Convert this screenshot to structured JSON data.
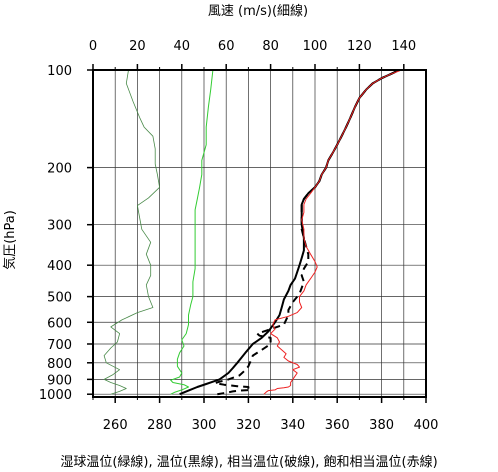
{
  "chart_data": {
    "type": "line",
    "top_axis": {
      "label": "風速 (m/s)(細線)",
      "range": [
        0,
        150
      ],
      "ticks": [
        0,
        20,
        40,
        60,
        80,
        100,
        120,
        140
      ]
    },
    "bottom_axis": {
      "label": "湿球温位(緑線), 温位(黒線), 相当温位(破線), 飽和相当温位(赤線)",
      "range": [
        250,
        400
      ],
      "ticks": [
        260,
        280,
        300,
        320,
        340,
        360,
        380,
        400
      ]
    },
    "y_axis": {
      "label": "気圧(hPa)",
      "scale": "log",
      "range": [
        1020,
        100
      ],
      "ticks": [
        100,
        200,
        300,
        400,
        500,
        600,
        700,
        800,
        900,
        1000
      ]
    },
    "grid": true,
    "series": [
      {
        "name": "風速(細線)",
        "axis": "top",
        "color": "#4a8a4a",
        "style": "thin",
        "points": [
          [
            8,
            1000
          ],
          [
            12,
            980
          ],
          [
            15,
            960
          ],
          [
            12,
            940
          ],
          [
            8,
            920
          ],
          [
            5,
            900
          ],
          [
            9,
            870
          ],
          [
            12,
            840
          ],
          [
            6,
            800
          ],
          [
            5,
            760
          ],
          [
            8,
            720
          ],
          [
            11,
            690
          ],
          [
            12,
            650
          ],
          [
            8,
            620
          ],
          [
            13,
            590
          ],
          [
            20,
            560
          ],
          [
            27,
            540
          ],
          [
            25,
            500
          ],
          [
            24,
            460
          ],
          [
            26,
            430
          ],
          [
            26,
            400
          ],
          [
            24,
            370
          ],
          [
            26,
            340
          ],
          [
            22,
            310
          ],
          [
            21,
            285
          ],
          [
            20,
            262
          ],
          [
            25,
            248
          ],
          [
            30,
            230
          ],
          [
            29,
            210
          ],
          [
            28,
            195
          ],
          [
            28,
            175
          ],
          [
            27,
            160
          ],
          [
            23,
            150
          ],
          [
            21,
            140
          ],
          [
            18,
            125
          ],
          [
            15,
            110
          ],
          [
            16,
            100
          ]
        ]
      },
      {
        "name": "湿球温位(緑線)",
        "axis": "bottom",
        "color": "#33cc33",
        "style": "solid",
        "points": [
          [
            285,
            1000
          ],
          [
            287,
            985
          ],
          [
            290,
            970
          ],
          [
            293,
            950
          ],
          [
            291,
            935
          ],
          [
            286,
            920
          ],
          [
            285,
            905
          ],
          [
            289,
            885
          ],
          [
            290,
            860
          ],
          [
            288,
            820
          ],
          [
            288,
            780
          ],
          [
            289,
            745
          ],
          [
            291,
            710
          ],
          [
            290,
            680
          ],
          [
            292,
            650
          ],
          [
            293,
            610
          ],
          [
            293,
            570
          ],
          [
            294,
            530
          ],
          [
            295,
            500
          ],
          [
            295,
            450
          ],
          [
            296,
            410
          ],
          [
            296,
            370
          ],
          [
            296,
            330
          ],
          [
            296,
            300
          ],
          [
            296,
            270
          ],
          [
            297,
            250
          ],
          [
            298,
            230
          ],
          [
            299,
            210
          ],
          [
            299,
            190
          ],
          [
            301,
            170
          ],
          [
            301,
            150
          ],
          [
            302,
            130
          ],
          [
            303,
            115
          ],
          [
            304,
            100
          ]
        ]
      },
      {
        "name": "温位(黒線)",
        "axis": "bottom",
        "color": "#000000",
        "style": "bold",
        "points": [
          [
            289,
            1000
          ],
          [
            293,
            975
          ],
          [
            297,
            950
          ],
          [
            301,
            930
          ],
          [
            304,
            915
          ],
          [
            307,
            900
          ],
          [
            309,
            880
          ],
          [
            311,
            860
          ],
          [
            313,
            830
          ],
          [
            315,
            800
          ],
          [
            317,
            770
          ],
          [
            319,
            740
          ],
          [
            322,
            700
          ],
          [
            326,
            670
          ],
          [
            329,
            640
          ],
          [
            332,
            600
          ],
          [
            334,
            570
          ],
          [
            335,
            540
          ],
          [
            336,
            510
          ],
          [
            338,
            480
          ],
          [
            339,
            460
          ],
          [
            341,
            440
          ],
          [
            342,
            420
          ],
          [
            343,
            400
          ],
          [
            344,
            380
          ],
          [
            345,
            360
          ],
          [
            345,
            330
          ],
          [
            344,
            300
          ],
          [
            344,
            275
          ],
          [
            344,
            260
          ],
          [
            345,
            250
          ],
          [
            347,
            240
          ],
          [
            350,
            230
          ],
          [
            352,
            220
          ],
          [
            353,
            210
          ],
          [
            355,
            200
          ],
          [
            356,
            190
          ],
          [
            358,
            180
          ],
          [
            360,
            170
          ],
          [
            362,
            160
          ],
          [
            364,
            150
          ],
          [
            366,
            140
          ],
          [
            368,
            130
          ],
          [
            370,
            122
          ],
          [
            373,
            115
          ],
          [
            376,
            110
          ],
          [
            380,
            106
          ],
          [
            384,
            103
          ],
          [
            388,
            100
          ]
        ]
      },
      {
        "name": "相当温位(破線)",
        "axis": "bottom",
        "color": "#000000",
        "style": "dashed",
        "points": [
          [
            306,
            1000
          ],
          [
            310,
            990
          ],
          [
            313,
            980
          ],
          [
            316,
            975
          ],
          [
            321,
            970
          ],
          [
            320,
            960
          ],
          [
            320,
            950
          ],
          [
            315,
            945
          ],
          [
            309,
            935
          ],
          [
            305,
            925
          ],
          [
            307,
            915
          ],
          [
            310,
            905
          ],
          [
            313,
            890
          ],
          [
            316,
            875
          ],
          [
            318,
            850
          ],
          [
            320,
            820
          ],
          [
            321,
            790
          ],
          [
            322,
            760
          ],
          [
            326,
            730
          ],
          [
            330,
            700
          ],
          [
            330,
            680
          ],
          [
            330,
            670
          ],
          [
            325,
            660
          ],
          [
            324,
            650
          ],
          [
            330,
            630
          ],
          [
            336,
            610
          ],
          [
            337,
            590
          ],
          [
            338,
            570
          ],
          [
            338,
            550
          ],
          [
            340,
            520
          ],
          [
            343,
            490
          ],
          [
            344,
            470
          ],
          [
            345,
            450
          ],
          [
            344,
            430
          ],
          [
            345,
            410
          ],
          [
            346,
            400
          ],
          [
            347,
            390
          ],
          [
            347,
            370
          ],
          [
            346,
            350
          ],
          [
            345,
            330
          ],
          [
            344,
            310
          ],
          [
            344,
            290
          ],
          [
            344,
            275
          ],
          [
            344,
            260
          ],
          [
            345,
            250
          ],
          [
            347,
            240
          ],
          [
            350,
            230
          ],
          [
            352,
            220
          ],
          [
            353,
            210
          ],
          [
            355,
            200
          ],
          [
            356,
            190
          ],
          [
            358,
            180
          ],
          [
            360,
            170
          ],
          [
            362,
            160
          ],
          [
            364,
            150
          ],
          [
            366,
            140
          ],
          [
            368,
            130
          ],
          [
            370,
            122
          ],
          [
            373,
            115
          ],
          [
            376,
            110
          ],
          [
            380,
            106
          ],
          [
            384,
            103
          ],
          [
            388,
            100
          ]
        ]
      },
      {
        "name": "飽和相当温位(赤線)",
        "axis": "bottom",
        "color": "#ee2222",
        "style": "solid",
        "points": [
          [
            327,
            1000
          ],
          [
            328,
            985
          ],
          [
            329,
            975
          ],
          [
            332,
            970
          ],
          [
            333,
            960
          ],
          [
            336,
            955
          ],
          [
            338,
            950
          ],
          [
            339,
            940
          ],
          [
            339,
            920
          ],
          [
            340,
            900
          ],
          [
            341,
            880
          ],
          [
            342,
            860
          ],
          [
            340,
            840
          ],
          [
            343,
            825
          ],
          [
            342,
            810
          ],
          [
            338,
            790
          ],
          [
            336,
            770
          ],
          [
            337,
            750
          ],
          [
            335,
            730
          ],
          [
            333,
            710
          ],
          [
            334,
            690
          ],
          [
            333,
            670
          ],
          [
            330,
            650
          ],
          [
            332,
            630
          ],
          [
            331,
            610
          ],
          [
            332,
            590
          ],
          [
            338,
            575
          ],
          [
            342,
            560
          ],
          [
            344,
            540
          ],
          [
            343,
            520
          ],
          [
            343,
            500
          ],
          [
            345,
            480
          ],
          [
            346,
            460
          ],
          [
            348,
            440
          ],
          [
            350,
            420
          ],
          [
            351,
            405
          ],
          [
            350,
            390
          ],
          [
            348,
            370
          ],
          [
            346,
            350
          ],
          [
            345,
            330
          ],
          [
            345,
            310
          ],
          [
            344,
            290
          ],
          [
            345,
            275
          ],
          [
            345,
            260
          ],
          [
            346,
            250
          ],
          [
            348,
            240
          ],
          [
            350,
            230
          ],
          [
            352,
            220
          ],
          [
            353,
            210
          ],
          [
            355,
            200
          ],
          [
            356,
            190
          ],
          [
            358,
            180
          ],
          [
            360,
            170
          ],
          [
            362,
            160
          ],
          [
            364,
            150
          ],
          [
            366,
            140
          ],
          [
            368,
            130
          ],
          [
            370,
            122
          ],
          [
            373,
            115
          ],
          [
            376,
            110
          ],
          [
            380,
            106
          ],
          [
            384,
            103
          ],
          [
            389,
            100
          ]
        ]
      }
    ]
  }
}
